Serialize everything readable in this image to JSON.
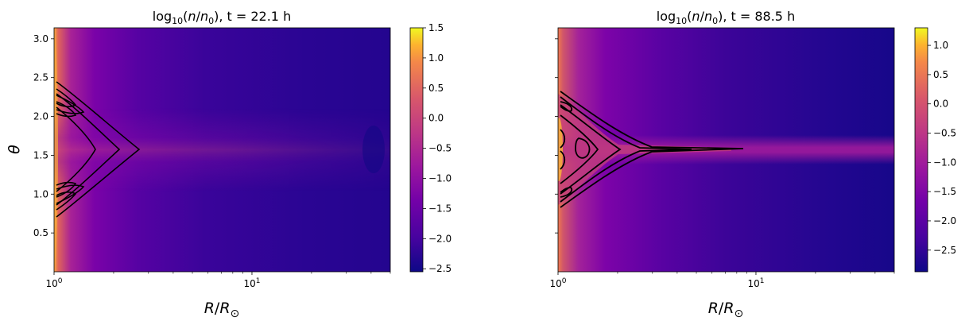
{
  "chart_data": [
    {
      "type": "heatmap",
      "title_prefix": "log",
      "title_sub": "10",
      "title_open": "(",
      "title_var": "n",
      "title_slash": "/",
      "title_var0": "n",
      "title_var0_sub": "0",
      "title_suffix": "), t = 22.1 h",
      "xlabel_main": "R",
      "xlabel_slash": "/",
      "xlabel_sub_main": "R",
      "xlabel_sub": "⊙",
      "ylabel": "θ",
      "x_scale": "log",
      "xlim": [
        1.0,
        50.0
      ],
      "ylim": [
        0.0,
        3.14159
      ],
      "x_ticks": [
        {
          "value": 1,
          "base": "10",
          "exp": "0"
        },
        {
          "value": 10,
          "base": "10",
          "exp": "1"
        }
      ],
      "y_ticks": [
        0.5,
        1.0,
        1.5,
        2.0,
        2.5,
        3.0
      ],
      "y_tick_labels": [
        "0.5",
        "1.0",
        "1.5",
        "2.0",
        "2.5",
        "3.0"
      ],
      "colorbar": {
        "colormap": "plasma",
        "range": [
          -2.55,
          1.5
        ],
        "ticks": [
          1.5,
          1.0,
          0.5,
          0.0,
          -0.5,
          -1.0,
          -1.5,
          -2.0,
          -2.5
        ],
        "tick_labels": [
          "1.5",
          "1.0",
          "0.5",
          "0.0",
          "−0.5",
          "−1.0",
          "−1.5",
          "−2.0",
          "−2.5"
        ]
      },
      "contours": "closed magnetic field lines around the equator, extending to R ≈ 2.7",
      "contour_color": "#000000"
    },
    {
      "type": "heatmap",
      "title_prefix": "log",
      "title_sub": "10",
      "title_open": "(",
      "title_var": "n",
      "title_slash": "/",
      "title_var0": "n",
      "title_var0_sub": "0",
      "title_suffix": "), t = 88.5 h",
      "xlabel_main": "R",
      "xlabel_slash": "/",
      "xlabel_sub_main": "R",
      "xlabel_sub": "⊙",
      "ylabel": "",
      "x_scale": "log",
      "xlim": [
        1.0,
        50.0
      ],
      "ylim": [
        0.0,
        3.14159
      ],
      "x_ticks": [
        {
          "value": 1,
          "base": "10",
          "exp": "0"
        },
        {
          "value": 10,
          "base": "10",
          "exp": "1"
        }
      ],
      "y_ticks": [
        0.5,
        1.0,
        1.5,
        2.0,
        2.5,
        3.0
      ],
      "y_tick_labels": [],
      "colorbar": {
        "colormap": "plasma",
        "range": [
          -2.87,
          1.3
        ],
        "ticks": [
          1.0,
          0.5,
          0.0,
          -0.5,
          -1.0,
          -1.5,
          -2.0,
          -2.5
        ],
        "tick_labels": [
          "1.0",
          "0.5",
          "0.0",
          "−0.5",
          "−1.0",
          "−1.5",
          "−2.0",
          "−2.5"
        ]
      },
      "contours": "closed field lines plus a streamer stalk extending to R ≈ 8.7",
      "contour_color": "#000000"
    }
  ]
}
